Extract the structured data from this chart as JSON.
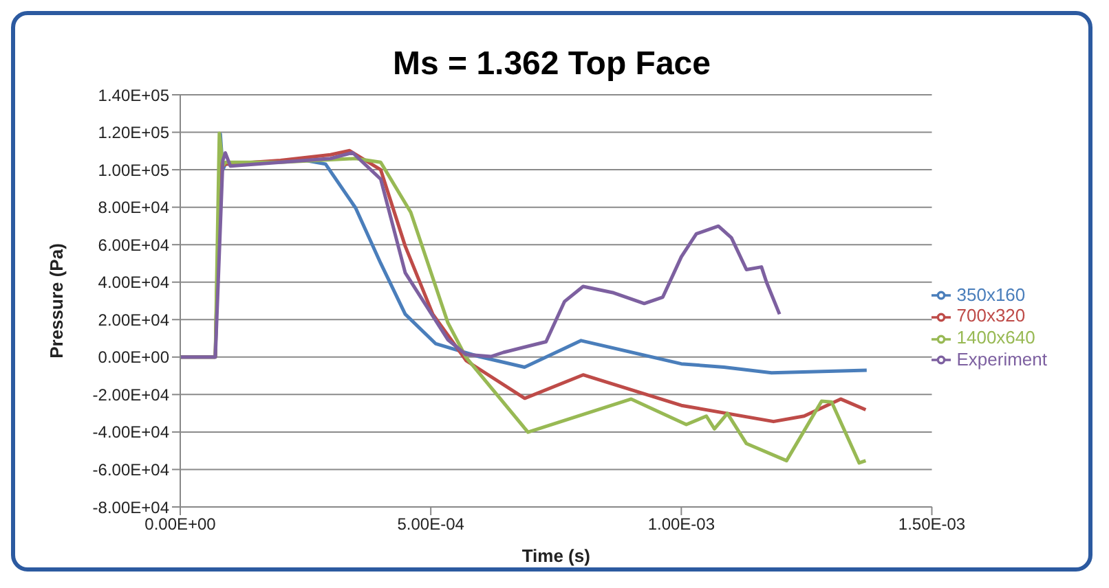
{
  "chart_data": {
    "type": "line",
    "title": "Ms = 1.362 Top Face",
    "xlabel": "Time (s)",
    "ylabel": "Pressure (Pa)",
    "xlim": [
      0,
      0.0015
    ],
    "xticks": [
      {
        "value": 0,
        "label": "0.00E+00"
      },
      {
        "value": 0.0005,
        "label": "5.00E-04"
      },
      {
        "value": 0.001,
        "label": "1.00E-03"
      },
      {
        "value": 0.0015,
        "label": "1.50E-03"
      }
    ],
    "ylim": [
      -80000,
      140000
    ],
    "yticks": [
      {
        "value": -80000,
        "label": "-8.00E+04"
      },
      {
        "value": -60000,
        "label": "-6.00E+04"
      },
      {
        "value": -40000,
        "label": "-4.00E+04"
      },
      {
        "value": -20000,
        "label": "-2.00E+04"
      },
      {
        "value": 0,
        "label": "0.00E+00"
      },
      {
        "value": 20000,
        "label": "2.00E+04"
      },
      {
        "value": 40000,
        "label": "4.00E+04"
      },
      {
        "value": 60000,
        "label": "6.00E+04"
      },
      {
        "value": 80000,
        "label": "8.00E+04"
      },
      {
        "value": 100000,
        "label": "1.00E+05"
      },
      {
        "value": 120000,
        "label": "1.20E+05"
      },
      {
        "value": 140000,
        "label": "1.40E+05"
      }
    ],
    "grid": "y",
    "legend": "right",
    "marker": "none",
    "line_style": "solid",
    "series": [
      {
        "name": "350x160",
        "color": "#4a7ebb",
        "x": [
          0,
          7e-05,
          8e-05,
          8.5e-05,
          9e-05,
          0.00015,
          0.00025,
          0.00029,
          0.00035,
          0.0004,
          0.000449,
          0.00051,
          0.000596,
          0.000687,
          0.0008,
          0.001,
          0.001085,
          0.00118,
          0.00137
        ],
        "values": [
          0,
          0,
          119000,
          100000,
          103000,
          104000,
          105000,
          103000,
          79600,
          50100,
          22900,
          7100,
          300,
          -5400,
          8800,
          -3600,
          -5400,
          -8400,
          -7000
        ]
      },
      {
        "name": "700x320",
        "color": "#be4b48",
        "x": [
          0,
          7e-05,
          8e-05,
          8.5e-05,
          9e-05,
          0.0002,
          0.0003,
          0.000338,
          0.0004,
          0.000449,
          0.000504,
          0.000571,
          0.0006875,
          0.000804,
          0.001,
          0.001184,
          0.001245,
          0.001318,
          0.001368
        ],
        "values": [
          0,
          0,
          110000,
          102000,
          103000,
          105000,
          108000,
          110200,
          100000,
          59200,
          22900,
          -2000,
          -22000,
          -9500,
          -25800,
          -34400,
          -31500,
          -22400,
          -28100
        ]
      },
      {
        "name": "1400x640",
        "color": "#98b954",
        "x": [
          0,
          7e-05,
          7.8e-05,
          8.5e-05,
          9e-05,
          0.0002,
          0.00035,
          0.0004,
          0.00046,
          0.000534,
          0.00057,
          0.000694,
          0.0009,
          0.00101,
          0.00105,
          0.001066,
          0.001092,
          0.00113,
          0.00121,
          0.00128,
          0.0013,
          0.001355,
          0.001368
        ],
        "values": [
          0,
          0,
          119500,
          102000,
          104000,
          104000,
          106000,
          104000,
          77300,
          18400,
          0,
          -40100,
          -22400,
          -36000,
          -31500,
          -38300,
          -30100,
          -46200,
          -55300,
          -23500,
          -24000,
          -56500,
          -55300
        ]
      },
      {
        "name": "Experiment",
        "color": "#7d60a0",
        "x": [
          0,
          7e-05,
          8.5e-05,
          9e-05,
          0.0001,
          0.0002,
          0.0003,
          0.000344,
          0.0004,
          0.000449,
          0.000534,
          0.00057,
          0.00062,
          0.000645,
          0.00073,
          0.000767,
          0.000804,
          0.000865,
          0.000926,
          0.000963,
          0.001,
          0.00103,
          0.001074,
          0.0011,
          0.00113,
          0.00116,
          0.00117,
          0.001196
        ],
        "values": [
          0,
          0,
          105000,
          109000,
          102000,
          104000,
          106000,
          109100,
          95000,
          45000,
          9300,
          1400,
          300,
          2500,
          8200,
          29700,
          37700,
          34300,
          28600,
          32000,
          53500,
          65800,
          69900,
          63700,
          46700,
          48100,
          40000,
          22900
        ]
      }
    ]
  }
}
